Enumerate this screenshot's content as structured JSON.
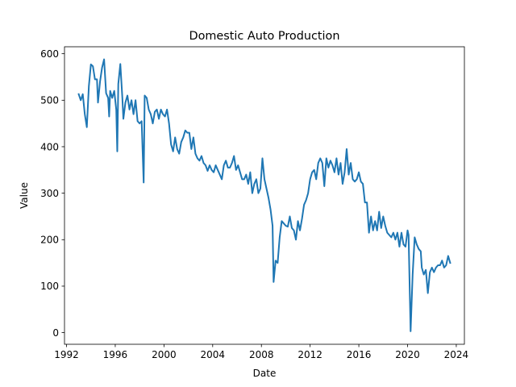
{
  "chart_data": {
    "type": "line",
    "title": "Domestic Auto Production",
    "xlabel": "Date",
    "ylabel": "Value",
    "xlim": [
      "1991-11-01",
      "2024-09-01"
    ],
    "ylim": [
      -25,
      615
    ],
    "x_ticks": [
      "1992",
      "1996",
      "2000",
      "2004",
      "2008",
      "2012",
      "2016",
      "2020",
      "2024"
    ],
    "y_ticks": [
      0,
      100,
      200,
      300,
      400,
      500,
      600
    ],
    "grid": false,
    "line_color": "#1f77b4",
    "series": [
      {
        "points": [
          [
            "1993-01",
            513
          ],
          [
            "1993-03",
            500
          ],
          [
            "1993-05",
            513
          ],
          [
            "1993-07",
            470
          ],
          [
            "1993-09",
            442
          ],
          [
            "1993-11",
            530
          ],
          [
            "1994-01",
            577
          ],
          [
            "1994-03",
            573
          ],
          [
            "1994-05",
            545
          ],
          [
            "1994-07",
            545
          ],
          [
            "1994-08",
            495
          ],
          [
            "1994-10",
            540
          ],
          [
            "1994-12",
            570
          ],
          [
            "1995-02",
            588
          ],
          [
            "1995-04",
            515
          ],
          [
            "1995-06",
            505
          ],
          [
            "1995-07",
            465
          ],
          [
            "1995-08",
            520
          ],
          [
            "1995-10",
            505
          ],
          [
            "1995-12",
            520
          ],
          [
            "1996-02",
            480
          ],
          [
            "1996-03",
            390
          ],
          [
            "1996-04",
            535
          ],
          [
            "1996-06",
            578
          ],
          [
            "1996-08",
            505
          ],
          [
            "1996-09",
            460
          ],
          [
            "1996-11",
            495
          ],
          [
            "1997-01",
            510
          ],
          [
            "1997-03",
            480
          ],
          [
            "1997-05",
            500
          ],
          [
            "1997-07",
            470
          ],
          [
            "1997-09",
            500
          ],
          [
            "1997-11",
            455
          ],
          [
            "1998-01",
            450
          ],
          [
            "1998-03",
            455
          ],
          [
            "1998-05",
            323
          ],
          [
            "1998-06",
            510
          ],
          [
            "1998-08",
            505
          ],
          [
            "1998-10",
            480
          ],
          [
            "1998-12",
            470
          ],
          [
            "1999-02",
            450
          ],
          [
            "1999-04",
            475
          ],
          [
            "1999-06",
            480
          ],
          [
            "1999-08",
            460
          ],
          [
            "1999-10",
            480
          ],
          [
            "1999-12",
            470
          ],
          [
            "2000-02",
            465
          ],
          [
            "2000-04",
            480
          ],
          [
            "2000-06",
            450
          ],
          [
            "2000-08",
            405
          ],
          [
            "2000-10",
            390
          ],
          [
            "2000-12",
            420
          ],
          [
            "2001-02",
            395
          ],
          [
            "2001-04",
            385
          ],
          [
            "2001-06",
            410
          ],
          [
            "2001-08",
            420
          ],
          [
            "2001-10",
            435
          ],
          [
            "2001-12",
            430
          ],
          [
            "2002-02",
            430
          ],
          [
            "2002-04",
            395
          ],
          [
            "2002-06",
            420
          ],
          [
            "2002-08",
            385
          ],
          [
            "2002-10",
            375
          ],
          [
            "2002-12",
            370
          ],
          [
            "2003-02",
            380
          ],
          [
            "2003-04",
            365
          ],
          [
            "2003-06",
            360
          ],
          [
            "2003-08",
            348
          ],
          [
            "2003-10",
            360
          ],
          [
            "2003-12",
            350
          ],
          [
            "2004-02",
            345
          ],
          [
            "2004-04",
            360
          ],
          [
            "2004-06",
            350
          ],
          [
            "2004-08",
            340
          ],
          [
            "2004-10",
            330
          ],
          [
            "2004-12",
            360
          ],
          [
            "2005-02",
            370
          ],
          [
            "2005-04",
            355
          ],
          [
            "2005-06",
            355
          ],
          [
            "2005-08",
            365
          ],
          [
            "2005-10",
            380
          ],
          [
            "2005-12",
            350
          ],
          [
            "2006-02",
            360
          ],
          [
            "2006-04",
            345
          ],
          [
            "2006-06",
            330
          ],
          [
            "2006-08",
            330
          ],
          [
            "2006-10",
            340
          ],
          [
            "2006-12",
            320
          ],
          [
            "2007-02",
            345
          ],
          [
            "2007-04",
            300
          ],
          [
            "2007-06",
            320
          ],
          [
            "2007-08",
            330
          ],
          [
            "2007-10",
            300
          ],
          [
            "2007-12",
            310
          ],
          [
            "2008-02",
            375
          ],
          [
            "2008-04",
            330
          ],
          [
            "2008-06",
            310
          ],
          [
            "2008-08",
            290
          ],
          [
            "2008-10",
            265
          ],
          [
            "2008-12",
            230
          ],
          [
            "2009-01",
            109
          ],
          [
            "2009-03",
            155
          ],
          [
            "2009-05",
            150
          ],
          [
            "2009-07",
            205
          ],
          [
            "2009-09",
            240
          ],
          [
            "2009-11",
            235
          ],
          [
            "2010-01",
            230
          ],
          [
            "2010-03",
            228
          ],
          [
            "2010-05",
            250
          ],
          [
            "2010-07",
            225
          ],
          [
            "2010-09",
            220
          ],
          [
            "2010-11",
            200
          ],
          [
            "2011-01",
            240
          ],
          [
            "2011-03",
            220
          ],
          [
            "2011-05",
            245
          ],
          [
            "2011-07",
            275
          ],
          [
            "2011-09",
            285
          ],
          [
            "2011-11",
            300
          ],
          [
            "2012-01",
            330
          ],
          [
            "2012-03",
            345
          ],
          [
            "2012-05",
            350
          ],
          [
            "2012-07",
            330
          ],
          [
            "2012-09",
            365
          ],
          [
            "2012-11",
            375
          ],
          [
            "2013-01",
            365
          ],
          [
            "2013-03",
            315
          ],
          [
            "2013-05",
            375
          ],
          [
            "2013-07",
            355
          ],
          [
            "2013-09",
            370
          ],
          [
            "2013-11",
            360
          ],
          [
            "2014-01",
            345
          ],
          [
            "2014-03",
            375
          ],
          [
            "2014-05",
            340
          ],
          [
            "2014-07",
            365
          ],
          [
            "2014-09",
            320
          ],
          [
            "2014-11",
            345
          ],
          [
            "2015-01",
            395
          ],
          [
            "2015-03",
            340
          ],
          [
            "2015-05",
            365
          ],
          [
            "2015-07",
            330
          ],
          [
            "2015-09",
            325
          ],
          [
            "2015-11",
            330
          ],
          [
            "2016-01",
            345
          ],
          [
            "2016-03",
            325
          ],
          [
            "2016-05",
            320
          ],
          [
            "2016-07",
            280
          ],
          [
            "2016-09",
            280
          ],
          [
            "2016-11",
            215
          ],
          [
            "2017-01",
            250
          ],
          [
            "2017-03",
            220
          ],
          [
            "2017-05",
            240
          ],
          [
            "2017-07",
            220
          ],
          [
            "2017-09",
            260
          ],
          [
            "2017-11",
            225
          ],
          [
            "2018-01",
            250
          ],
          [
            "2018-03",
            230
          ],
          [
            "2018-05",
            215
          ],
          [
            "2018-07",
            210
          ],
          [
            "2018-09",
            205
          ],
          [
            "2018-11",
            215
          ],
          [
            "2019-01",
            200
          ],
          [
            "2019-03",
            215
          ],
          [
            "2019-05",
            185
          ],
          [
            "2019-07",
            215
          ],
          [
            "2019-09",
            190
          ],
          [
            "2019-11",
            185
          ],
          [
            "2020-01",
            220
          ],
          [
            "2020-02",
            210
          ],
          [
            "2020-04",
            3
          ],
          [
            "2020-06",
            125
          ],
          [
            "2020-08",
            205
          ],
          [
            "2020-10",
            190
          ],
          [
            "2020-12",
            180
          ],
          [
            "2021-02",
            175
          ],
          [
            "2021-03",
            140
          ],
          [
            "2021-05",
            125
          ],
          [
            "2021-07",
            135
          ],
          [
            "2021-09",
            85
          ],
          [
            "2021-11",
            130
          ],
          [
            "2022-01",
            140
          ],
          [
            "2022-03",
            130
          ],
          [
            "2022-05",
            140
          ],
          [
            "2022-07",
            145
          ],
          [
            "2022-09",
            145
          ],
          [
            "2022-11",
            155
          ],
          [
            "2023-01",
            140
          ],
          [
            "2023-03",
            145
          ],
          [
            "2023-05",
            165
          ],
          [
            "2023-07",
            150
          ]
        ]
      }
    ]
  }
}
